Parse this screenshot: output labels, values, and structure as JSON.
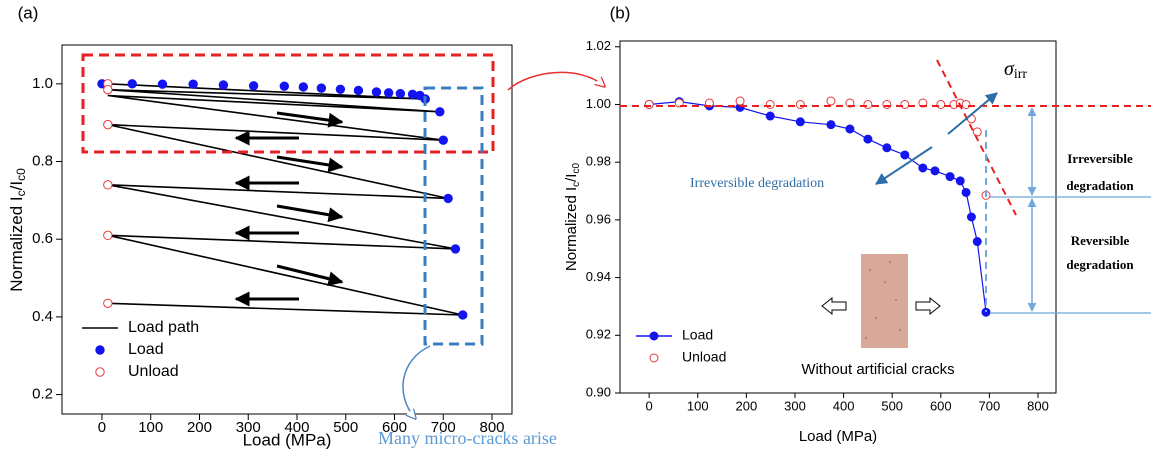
{
  "chart_data": [
    {
      "type": "line",
      "panel": "(a)",
      "x_label": "Load (MPa)",
      "y_label": [
        "Normalized I",
        "c",
        "/I",
        "c0"
      ],
      "xlim": [
        -82,
        841
      ],
      "ylim": [
        0.15,
        1.1
      ],
      "xticks": [
        0,
        100,
        200,
        300,
        400,
        500,
        600,
        700,
        800
      ],
      "yticks": [
        0.2,
        0.4,
        0.6,
        0.8,
        {
          "value": 1.0,
          "label": "1.0"
        }
      ],
      "legend": "lower left",
      "series": [
        {
          "name": "Load path",
          "color": "#000000",
          "line": true,
          "marker": "none",
          "x": [
            12,
            663,
            12,
            693,
            12,
            700,
            12,
            710,
            12,
            725,
            12,
            740,
            12
          ],
          "values": [
            1.0,
            0.961,
            0.985,
            0.928,
            0.97,
            0.855,
            0.895,
            0.705,
            0.74,
            0.575,
            0.61,
            0.405,
            0.435
          ]
        },
        {
          "name": "Load",
          "color": "#1414f0",
          "line": false,
          "marker": "filled",
          "x": [
            0,
            62,
            124,
            187,
            249,
            311,
            374,
            413,
            450,
            489,
            526,
            563,
            588,
            612,
            637,
            652,
            663,
            693,
            700,
            710,
            725,
            740
          ],
          "values": [
            1.0,
            1.0,
            0.999,
            0.999,
            0.997,
            0.995,
            0.994,
            0.992,
            0.989,
            0.986,
            0.983,
            0.979,
            0.977,
            0.975,
            0.973,
            0.97,
            0.961,
            0.928,
            0.855,
            0.705,
            0.575,
            0.405
          ]
        },
        {
          "name": "Unload",
          "color": "#e8383d",
          "line": false,
          "marker": "open",
          "x": [
            12,
            12,
            12,
            12,
            12,
            12
          ],
          "values": [
            1.0,
            0.985,
            0.895,
            0.74,
            0.61,
            0.435
          ]
        }
      ],
      "annotation": "Many micro-cracks arise"
    },
    {
      "type": "line",
      "panel": "(b)",
      "x_label": "Load (MPa)",
      "y_label": [
        "Normalized I",
        "c",
        "/I",
        "c0"
      ],
      "xlim": [
        -60,
        837
      ],
      "ylim": [
        0.9,
        1.022
      ],
      "xticks": [
        0,
        100,
        200,
        300,
        400,
        500,
        600,
        700,
        800
      ],
      "yticks": [
        {
          "value": 0.9,
          "label": "0.90"
        },
        0.92,
        0.94,
        0.96,
        0.98,
        {
          "value": 1.0,
          "label": "1.00"
        },
        1.02
      ],
      "legend": "lower left",
      "series": [
        {
          "name": "Load",
          "color": "#1414f0",
          "line": true,
          "marker": "filled",
          "x": [
            0,
            62,
            124,
            187,
            249,
            311,
            374,
            413,
            450,
            489,
            526,
            563,
            588,
            619,
            640,
            652,
            663,
            675,
            693
          ],
          "values": [
            1.0,
            1.001,
            0.9995,
            0.999,
            0.996,
            0.994,
            0.993,
            0.9915,
            0.988,
            0.985,
            0.9825,
            0.978,
            0.977,
            0.975,
            0.9735,
            0.9695,
            0.961,
            0.9525,
            0.928
          ]
        },
        {
          "name": "Unload",
          "color": "#e8383d",
          "line": false,
          "marker": "open",
          "x": [
            0,
            62,
            124,
            187,
            249,
            311,
            374,
            413,
            450,
            489,
            526,
            563,
            600,
            627,
            640,
            652,
            663,
            675,
            693
          ],
          "values": [
            1.0,
            1.0005,
            1.0005,
            1.0012,
            1.0,
            1.0,
            1.0012,
            1.0005,
            1.0,
            1.0,
            1.0,
            1.0005,
            1.0,
            1.0,
            1.0005,
            1.0,
            0.995,
            0.9905,
            0.9685
          ]
        }
      ],
      "sigma_label": [
        "σ",
        "irr"
      ],
      "arrow_label": "Irreversible degradation",
      "irreversible_label": [
        "Irreversible",
        "degradation"
      ],
      "reversible_label": [
        "Reversible",
        "degradation"
      ],
      "inset_label": "Without artificial cracks"
    }
  ]
}
